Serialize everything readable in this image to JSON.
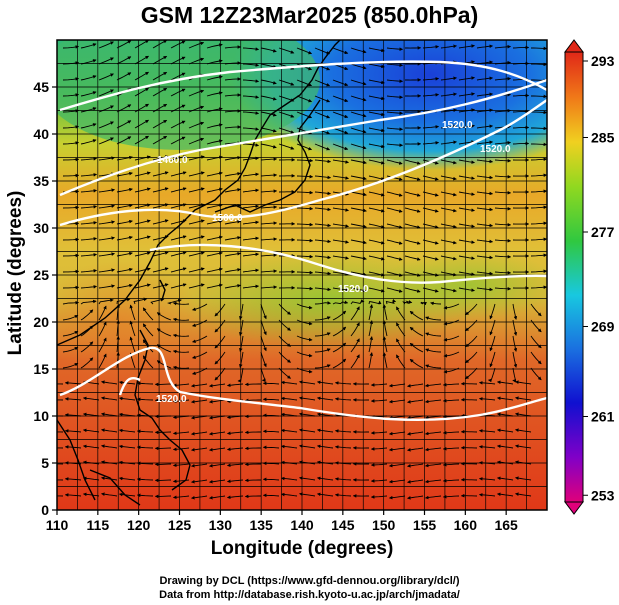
{
  "title": "GSM 12Z23Mar2025 (850.0hPa)",
  "xlabel": "Longitude (degrees)",
  "ylabel": "Latitude  (degrees)",
  "credits": {
    "line1": "Drawing by DCL (https://www.gfd-dennou.org/library/dcl/)",
    "line2": "Data from http://database.rish.kyoto-u.ac.jp/arch/jmadata/"
  },
  "map": {
    "lon_range": [
      110,
      170
    ],
    "lat_range": [
      0,
      50
    ],
    "x_ticks": [
      "110",
      "115",
      "120",
      "125",
      "130",
      "135",
      "140",
      "145",
      "150",
      "155",
      "160",
      "165"
    ],
    "y_ticks": [
      "0",
      "5",
      "10",
      "15",
      "20",
      "25",
      "30",
      "35",
      "40",
      "45"
    ],
    "grid": true,
    "contour_labels": [
      "1520.0",
      "1520.0",
      "1520.0",
      "1520.0",
      "1500.0",
      "1460.0"
    ],
    "colorbar": {
      "ticks": [
        "293",
        "285",
        "277",
        "269",
        "261",
        "253"
      ],
      "min": 253,
      "max": 293,
      "colors": [
        "#e0007a",
        "#7a00c8",
        "#1010d0",
        "#1a70e0",
        "#18c8e0",
        "#20c040",
        "#9ad820",
        "#f0d020",
        "#f07818",
        "#e02818"
      ]
    }
  }
}
